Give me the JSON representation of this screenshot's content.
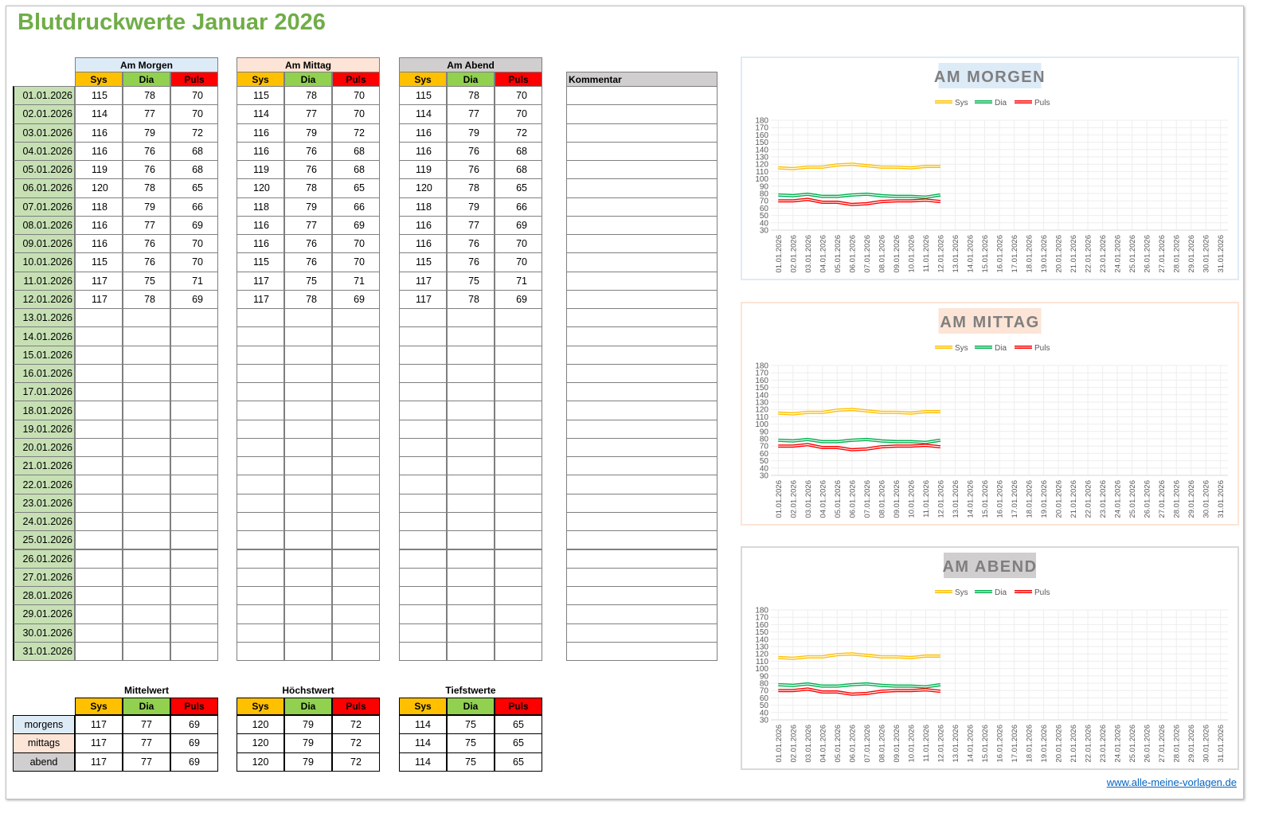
{
  "title": "Blutdruckwerte Januar 2026",
  "colors": {
    "sys": "#ffc000",
    "dia": "#92d050",
    "puls": "#ff0000",
    "date": "#c6e0b4",
    "morgen": "#ddebf7",
    "mittag": "#fce4d6",
    "abend": "#d0cece"
  },
  "columns": [
    "Sys",
    "Dia",
    "Puls"
  ],
  "groups": [
    {
      "label": "Am Morgen",
      "key": "morgen"
    },
    {
      "label": "Am Mittag",
      "key": "mittag"
    },
    {
      "label": "Am Abend",
      "key": "abend"
    }
  ],
  "comment_header": "Kommentar",
  "dates": [
    "01.01.2026",
    "02.01.2026",
    "03.01.2026",
    "04.01.2026",
    "05.01.2026",
    "06.01.2026",
    "07.01.2026",
    "08.01.2026",
    "09.01.2026",
    "10.01.2026",
    "11.01.2026",
    "12.01.2026",
    "13.01.2026",
    "14.01.2026",
    "15.01.2026",
    "16.01.2026",
    "17.01.2026",
    "18.01.2026",
    "19.01.2026",
    "20.01.2026",
    "21.01.2026",
    "22.01.2026",
    "23.01.2026",
    "24.01.2026",
    "25.01.2026",
    "26.01.2026",
    "27.01.2026",
    "28.01.2026",
    "29.01.2026",
    "30.01.2026",
    "31.01.2026"
  ],
  "readings": {
    "sys": [
      115,
      114,
      116,
      116,
      119,
      120,
      118,
      116,
      116,
      115,
      117,
      117
    ],
    "dia": [
      78,
      77,
      79,
      76,
      76,
      78,
      79,
      77,
      76,
      76,
      75,
      78
    ],
    "puls": [
      70,
      70,
      72,
      68,
      68,
      65,
      66,
      69,
      70,
      70,
      71,
      69
    ]
  },
  "summary": {
    "row_labels": [
      "morgens",
      "mittags",
      "abend"
    ],
    "blocks": [
      {
        "title": "Mittelwert",
        "values": [
          117,
          77,
          69
        ]
      },
      {
        "title": "Höchstwert",
        "values": [
          120,
          79,
          72
        ]
      },
      {
        "title": "Tiefstwerte",
        "values": [
          114,
          75,
          65
        ]
      }
    ]
  },
  "chart_data": [
    {
      "type": "line",
      "title": "AM MORGEN",
      "ylim": [
        30,
        180
      ],
      "yticks": [
        30,
        40,
        50,
        60,
        70,
        80,
        90,
        100,
        110,
        120,
        130,
        140,
        150,
        160,
        170,
        180
      ],
      "legend": [
        "Sys",
        "Dia",
        "Puls"
      ],
      "legend_position": "top"
    },
    {
      "type": "line",
      "title": "AM MITTAG",
      "ylim": [
        30,
        180
      ],
      "yticks": [
        30,
        40,
        50,
        60,
        70,
        80,
        90,
        100,
        110,
        120,
        130,
        140,
        150,
        160,
        170,
        180
      ],
      "legend": [
        "Sys",
        "Dia",
        "Puls"
      ],
      "legend_position": "top"
    },
    {
      "type": "line",
      "title": "AM ABEND",
      "ylim": [
        30,
        180
      ],
      "yticks": [
        30,
        40,
        50,
        60,
        70,
        80,
        90,
        100,
        110,
        120,
        130,
        140,
        150,
        160,
        170,
        180
      ],
      "legend": [
        "Sys",
        "Dia",
        "Puls"
      ],
      "legend_position": "top"
    }
  ],
  "line_colors": {
    "sys": "#ffc000",
    "dia": "#00b050",
    "puls": "#ff0000"
  },
  "link": "www.alle-meine-vorlagen.de"
}
